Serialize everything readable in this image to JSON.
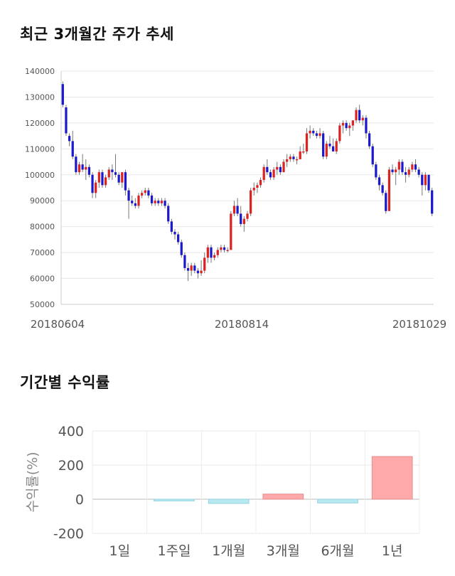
{
  "sections": {
    "price_title": "최근 3개월간 주가 추세",
    "return_title": "기간별 수익률"
  },
  "chart_data": [
    {
      "type": "candlestick",
      "title": "최근 3개월간 주가 추세",
      "ylim": [
        50000,
        140000
      ],
      "y_ticks": [
        "140000",
        "130000",
        "120000",
        "110000",
        "100000",
        "90000",
        "80000",
        "70000",
        "60000",
        "50000"
      ],
      "x_tick_labels": [
        "20180604",
        "20180814",
        "20181029"
      ],
      "x_tick_label_positions": [
        0,
        49,
        99
      ],
      "grid": true,
      "up_color": "#dd2222",
      "down_color": "#1a1acc",
      "candles": [
        [
          135000,
          136000,
          126000,
          127000
        ],
        [
          126000,
          127000,
          115000,
          116000
        ],
        [
          115000,
          116000,
          111000,
          113000
        ],
        [
          113000,
          117000,
          106000,
          107000
        ],
        [
          107000,
          108000,
          100000,
          101000
        ],
        [
          101000,
          105000,
          100000,
          104000
        ],
        [
          104000,
          108000,
          101000,
          102000
        ],
        [
          102000,
          106000,
          98000,
          103000
        ],
        [
          103000,
          104000,
          99000,
          100000
        ],
        [
          100000,
          101000,
          91000,
          93000
        ],
        [
          93000,
          98000,
          91000,
          97000
        ],
        [
          97000,
          102000,
          95000,
          101000
        ],
        [
          101000,
          102000,
          95000,
          96000
        ],
        [
          96000,
          100000,
          95000,
          99000
        ],
        [
          99000,
          103000,
          98000,
          102000
        ],
        [
          102000,
          104000,
          98000,
          101000
        ],
        [
          101000,
          108000,
          99000,
          100000
        ],
        [
          100000,
          101000,
          96000,
          97000
        ],
        [
          97000,
          101000,
          95000,
          101000
        ],
        [
          101000,
          102000,
          92000,
          94000
        ],
        [
          94000,
          95000,
          83000,
          90000
        ],
        [
          90000,
          92000,
          88000,
          89000
        ],
        [
          89000,
          91000,
          87000,
          88000
        ],
        [
          88000,
          93000,
          87000,
          92000
        ],
        [
          92000,
          94000,
          91000,
          93000
        ],
        [
          93000,
          95000,
          92000,
          94000
        ],
        [
          94000,
          95000,
          91000,
          92000
        ],
        [
          92000,
          93000,
          88000,
          89000
        ],
        [
          89000,
          91000,
          88000,
          90000
        ],
        [
          90000,
          91000,
          88000,
          89000
        ],
        [
          89000,
          91000,
          88000,
          90000
        ],
        [
          90000,
          91000,
          87000,
          88000
        ],
        [
          88000,
          89000,
          81000,
          82000
        ],
        [
          82000,
          83000,
          77000,
          78000
        ],
        [
          78000,
          79000,
          75000,
          77000
        ],
        [
          77000,
          78000,
          73000,
          74000
        ],
        [
          74000,
          75000,
          68000,
          69000
        ],
        [
          69000,
          70000,
          63000,
          64000
        ],
        [
          64000,
          66000,
          59000,
          63000
        ],
        [
          63000,
          66000,
          61000,
          65000
        ],
        [
          65000,
          66000,
          62000,
          63000
        ],
        [
          63000,
          64000,
          60000,
          62000
        ],
        [
          62000,
          67000,
          61000,
          63000
        ],
        [
          63000,
          70000,
          62000,
          68000
        ],
        [
          68000,
          73000,
          66000,
          72000
        ],
        [
          72000,
          73000,
          66000,
          68000
        ],
        [
          68000,
          70000,
          67000,
          69000
        ],
        [
          69000,
          72000,
          68000,
          71000
        ],
        [
          71000,
          73000,
          70000,
          72000
        ],
        [
          72000,
          73000,
          70000,
          71000
        ],
        [
          71000,
          72000,
          70000,
          71000
        ],
        [
          71000,
          86000,
          71000,
          85000
        ],
        [
          85000,
          90000,
          84000,
          88000
        ],
        [
          88000,
          91000,
          84000,
          85000
        ],
        [
          85000,
          88000,
          80000,
          81000
        ],
        [
          81000,
          84000,
          78000,
          83000
        ],
        [
          83000,
          86000,
          82000,
          85000
        ],
        [
          85000,
          95000,
          84000,
          94000
        ],
        [
          94000,
          97000,
          92000,
          95000
        ],
        [
          95000,
          97000,
          93000,
          96000
        ],
        [
          96000,
          99000,
          95000,
          98000
        ],
        [
          98000,
          104000,
          97000,
          103000
        ],
        [
          103000,
          106000,
          100000,
          101000
        ],
        [
          101000,
          102000,
          98000,
          99000
        ],
        [
          99000,
          103000,
          98000,
          102000
        ],
        [
          102000,
          105000,
          100000,
          103000
        ],
        [
          103000,
          104000,
          100000,
          101000
        ],
        [
          101000,
          106000,
          101000,
          105000
        ],
        [
          105000,
          108000,
          103000,
          106000
        ],
        [
          106000,
          108000,
          105000,
          107000
        ],
        [
          107000,
          108000,
          105000,
          106000
        ],
        [
          106000,
          107000,
          104000,
          106000
        ],
        [
          106000,
          111000,
          106000,
          109000
        ],
        [
          109000,
          112000,
          108000,
          109000
        ],
        [
          109000,
          118000,
          108000,
          116000
        ],
        [
          116000,
          119000,
          114000,
          117000
        ],
        [
          117000,
          118000,
          115000,
          116000
        ],
        [
          116000,
          117000,
          114000,
          115000
        ],
        [
          115000,
          118000,
          114000,
          116000
        ],
        [
          116000,
          117000,
          106000,
          107000
        ],
        [
          107000,
          113000,
          106000,
          112000
        ],
        [
          112000,
          115000,
          110000,
          111000
        ],
        [
          111000,
          114000,
          109000,
          109000
        ],
        [
          109000,
          114000,
          108000,
          113000
        ],
        [
          113000,
          120000,
          112000,
          119000
        ],
        [
          119000,
          121000,
          116000,
          120000
        ],
        [
          120000,
          121000,
          117000,
          118000
        ],
        [
          118000,
          120000,
          115000,
          119000
        ],
        [
          119000,
          121000,
          117000,
          121000
        ],
        [
          121000,
          126000,
          120000,
          125000
        ],
        [
          125000,
          127000,
          120000,
          121000
        ],
        [
          121000,
          123000,
          119000,
          122000
        ],
        [
          122000,
          123000,
          114000,
          116000
        ],
        [
          116000,
          117000,
          110000,
          111000
        ],
        [
          111000,
          112000,
          103000,
          104000
        ],
        [
          104000,
          105000,
          98000,
          99000
        ],
        [
          99000,
          100000,
          94000,
          96000
        ],
        [
          96000,
          97000,
          92000,
          93000
        ],
        [
          93000,
          94000,
          85000,
          86000
        ],
        [
          86000,
          103000,
          86000,
          102000
        ]
      ],
      "candles_tail": [
        [
          102000,
          104000,
          100000,
          101000
        ],
        [
          101000,
          103000,
          96000,
          102000
        ],
        [
          102000,
          106000,
          100000,
          105000
        ],
        [
          105000,
          106000,
          100000,
          101000
        ],
        [
          101000,
          103000,
          97000,
          100000
        ],
        [
          100000,
          103000,
          99000,
          102000
        ],
        [
          102000,
          105000,
          101000,
          104000
        ],
        [
          104000,
          106000,
          101000,
          102000
        ],
        [
          102000,
          103000,
          99000,
          100000
        ],
        [
          100000,
          101000,
          92000,
          96000
        ],
        [
          96000,
          101000,
          94000,
          100000
        ],
        [
          100000,
          100000,
          93000,
          94000
        ],
        [
          94000,
          95000,
          84000,
          85000
        ]
      ]
    },
    {
      "type": "bar",
      "title": "기간별 수익률",
      "ylabel": "수익률(%)",
      "ylim": [
        -200,
        400
      ],
      "y_ticks": [
        "400",
        "200",
        "0",
        "-200"
      ],
      "y_tick_values": [
        400,
        200,
        0,
        -200
      ],
      "categories": [
        "1일",
        "1주일",
        "1개월",
        "3개월",
        "6개월",
        "1년"
      ],
      "values": [
        0,
        -10,
        -25,
        30,
        -22,
        250
      ],
      "positive_color": "#ffaaaa",
      "negative_color": "#b8e8f0",
      "grid": true
    }
  ]
}
